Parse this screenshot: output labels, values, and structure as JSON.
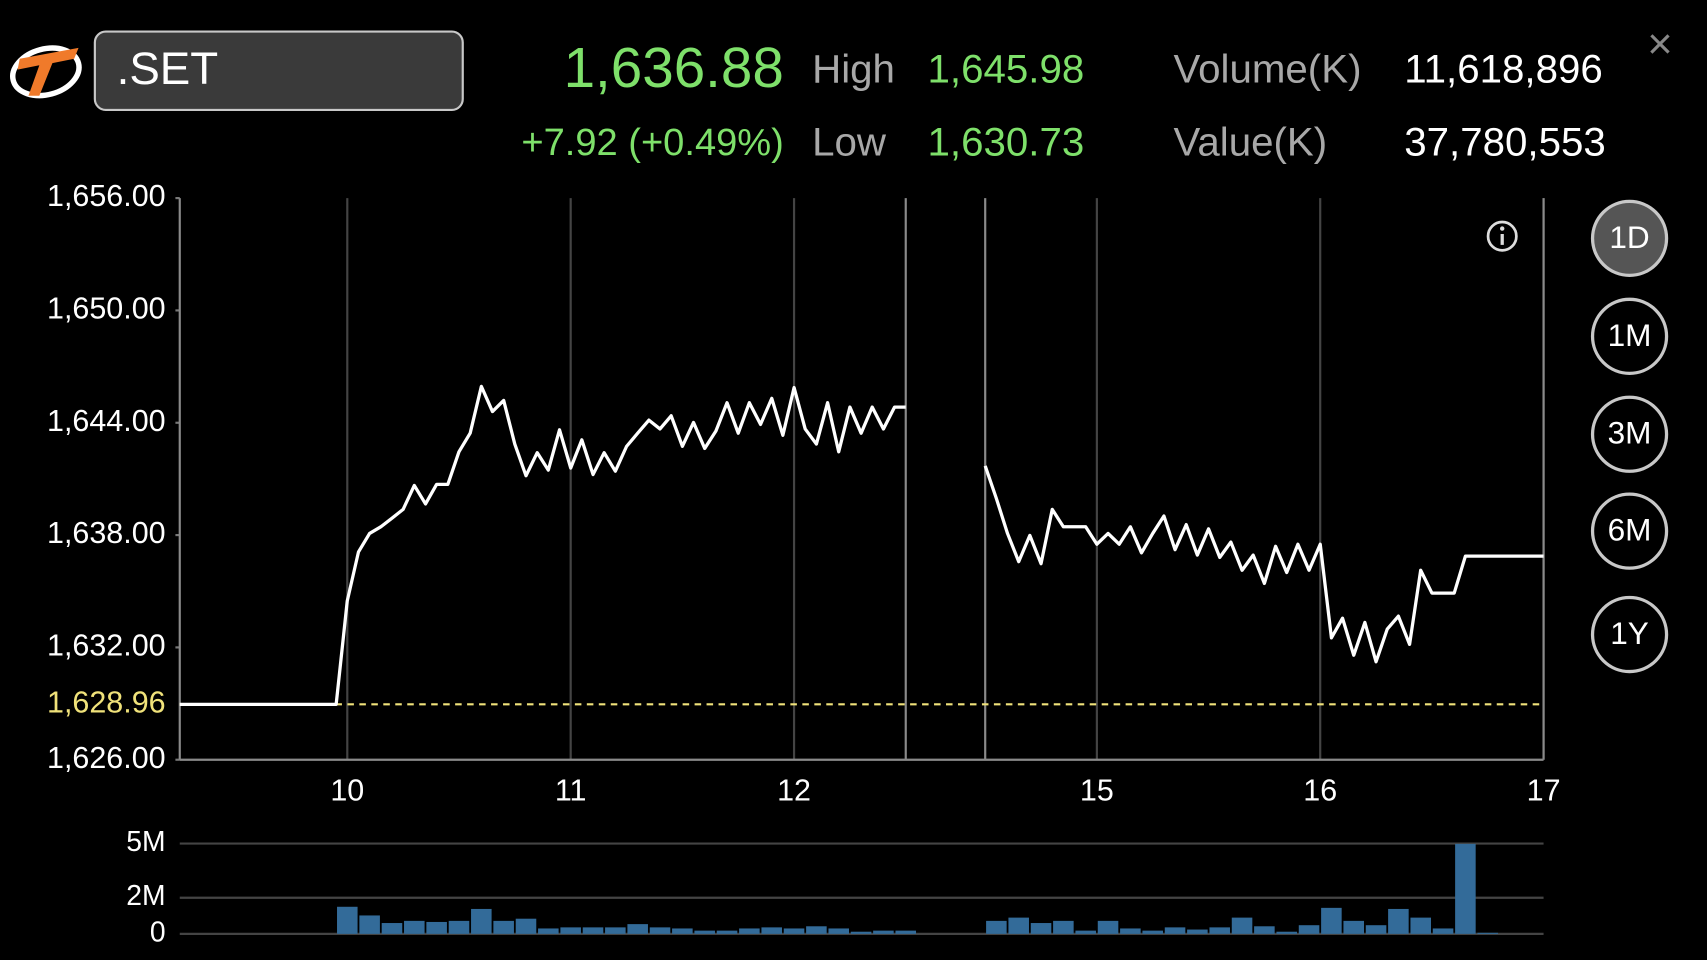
{
  "header": {
    "symbol": ".SET",
    "price": "1,636.88",
    "change": "+7.92 (+0.49%)",
    "high_label": "High",
    "high": "1,645.98",
    "low_label": "Low",
    "low": "1,630.73",
    "volume_label": "Volume(K)",
    "volume": "11,618,896",
    "value_label": "Value(K)",
    "value": "37,780,553",
    "close": "×",
    "periods": [
      "1D",
      "1M",
      "3M",
      "6M",
      "1Y"
    ],
    "active_period": 0
  },
  "chart_data": [
    {
      "type": "line",
      "color": "#ffffff",
      "x": [
        9.25,
        9.95,
        10.0,
        10.05,
        10.1,
        10.15,
        10.2,
        10.25,
        10.3,
        10.35,
        10.4,
        10.45,
        10.5,
        10.55,
        10.6,
        10.65,
        10.7,
        10.75,
        10.8,
        10.85,
        10.9,
        10.95,
        11.0,
        11.05,
        11.1,
        11.15,
        11.2,
        11.25,
        11.3,
        11.35,
        11.4,
        11.45,
        11.5,
        11.55,
        11.6,
        11.65,
        11.7,
        11.75,
        11.8,
        11.85,
        11.9,
        11.95,
        12.0,
        12.05,
        12.1,
        12.15,
        12.2,
        12.25,
        12.3,
        12.35,
        12.4,
        12.45,
        12.5,
        13.5,
        14.5,
        14.55,
        14.6,
        14.65,
        14.7,
        14.75,
        14.8,
        14.85,
        14.9,
        14.95,
        15.0,
        15.05,
        15.1,
        15.15,
        15.2,
        15.25,
        15.3,
        15.35,
        15.4,
        15.45,
        15.5,
        15.55,
        15.6,
        15.65,
        15.7,
        15.75,
        15.8,
        15.85,
        15.9,
        15.95,
        16.0,
        16.05,
        16.1,
        16.15,
        16.2,
        16.25,
        16.3,
        16.35,
        16.4,
        16.45,
        16.5,
        16.55,
        16.6,
        16.65,
        17.0
      ],
      "values": [
        1628.96,
        1628.96,
        1634.49,
        1637.1,
        1638.09,
        1638.44,
        1638.9,
        1639.37,
        1640.65,
        1639.66,
        1640.71,
        1640.71,
        1642.45,
        1643.44,
        1645.94,
        1644.6,
        1645.19,
        1642.86,
        1641.17,
        1642.4,
        1641.47,
        1643.62,
        1641.58,
        1643.09,
        1641.23,
        1642.4,
        1641.41,
        1642.74,
        1643.44,
        1644.14,
        1643.67,
        1644.37,
        1642.74,
        1644.02,
        1642.63,
        1643.56,
        1645.07,
        1643.44,
        1645.07,
        1643.91,
        1645.3,
        1643.33,
        1645.88,
        1643.67,
        1642.86,
        1645.07,
        1642.45,
        1644.84,
        1643.44,
        1644.84,
        1643.67,
        1644.84,
        1644.84,
        null,
        1641.7,
        1639.95,
        1638.09,
        1636.58,
        1637.98,
        1636.47,
        1639.37,
        1638.44,
        1638.44,
        1638.44,
        1637.51,
        1638.09,
        1637.51,
        1638.44,
        1637.05,
        1638.09,
        1639.02,
        1637.22,
        1638.56,
        1636.93,
        1638.33,
        1636.81,
        1637.63,
        1636.12,
        1636.93,
        1635.42,
        1637.4,
        1636.0,
        1637.51,
        1636.12,
        1637.51,
        1632.51,
        1633.56,
        1631.58,
        1633.33,
        1631.23,
        1632.98,
        1633.67,
        1632.16,
        1636.12,
        1634.9,
        1634.9,
        1634.9,
        1636.88,
        1636.88
      ],
      "xlim": [
        9.25,
        17
      ],
      "breaks": [
        12.5,
        14.5
      ],
      "xticks": [
        10,
        11,
        12,
        15,
        16,
        17
      ],
      "ylim": [
        1626,
        1656
      ],
      "yticks": [
        {
          "value": 1626,
          "label": "1,626.00"
        },
        {
          "value": 1632,
          "label": "1,632.00"
        },
        {
          "value": 1638,
          "label": "1,638.00"
        },
        {
          "value": 1644,
          "label": "1,644.00"
        },
        {
          "value": 1650,
          "label": "1,650.00"
        },
        {
          "value": 1656,
          "label": "1,656.00"
        }
      ],
      "reference_line": {
        "value": 1628.96,
        "label": "1,628.96",
        "color": "#f0e27a"
      }
    },
    {
      "type": "bar",
      "color": "#336b99",
      "x": [
        10.0,
        10.1,
        10.2,
        10.3,
        10.4,
        10.5,
        10.6,
        10.7,
        10.8,
        10.9,
        11.0,
        11.1,
        11.2,
        11.3,
        11.4,
        11.5,
        11.6,
        11.7,
        11.8,
        11.9,
        12.0,
        12.1,
        12.2,
        12.3,
        12.4,
        12.5,
        14.55,
        14.65,
        14.75,
        14.85,
        14.95,
        15.05,
        15.15,
        15.25,
        15.35,
        15.45,
        15.55,
        15.65,
        15.75,
        15.85,
        15.95,
        16.05,
        16.15,
        16.25,
        16.35,
        16.45,
        16.55,
        16.65,
        16.75
      ],
      "values": [
        1500000,
        1020000,
        600000,
        720000,
        660000,
        720000,
        1380000,
        720000,
        840000,
        300000,
        360000,
        360000,
        360000,
        540000,
        360000,
        300000,
        180000,
        180000,
        300000,
        360000,
        300000,
        420000,
        300000,
        120000,
        180000,
        180000,
        720000,
        900000,
        600000,
        720000,
        180000,
        720000,
        300000,
        180000,
        360000,
        240000,
        360000,
        900000,
        420000,
        120000,
        480000,
        1440000,
        720000,
        480000,
        1380000,
        900000,
        300000,
        4980000,
        60000
      ],
      "ylim": [
        0,
        5000000
      ],
      "yticks": [
        0,
        {
          "value": 2000000,
          "label": "2M"
        },
        {
          "value": 5000000,
          "label": "5M"
        }
      ]
    }
  ]
}
